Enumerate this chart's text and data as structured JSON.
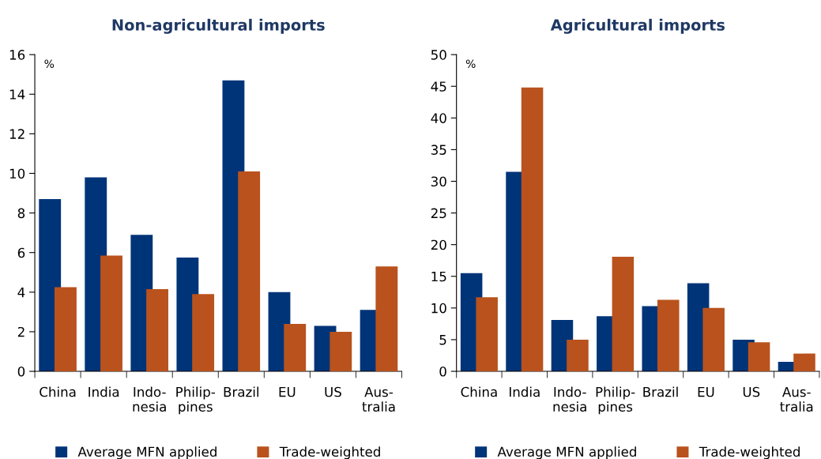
{
  "chart_data": [
    {
      "type": "bar",
      "title": "Non-agricultural imports",
      "ylabel": "%",
      "categories": [
        "China",
        "India",
        "Indo-\nnesia",
        "Philip-\npines",
        "Brazil",
        "EU",
        "US",
        "Aus-\ntralia"
      ],
      "series": [
        {
          "name": "Average MFN applied",
          "color": "#003478",
          "values": [
            8.7,
            9.8,
            6.9,
            5.75,
            14.7,
            4.0,
            2.3,
            3.1
          ]
        },
        {
          "name": "Trade-weighted",
          "color": "#b9521d",
          "values": [
            4.25,
            5.85,
            4.15,
            3.9,
            10.1,
            2.4,
            2.0,
            5.3
          ]
        }
      ],
      "ylim": [
        0,
        16
      ],
      "yticks": [
        0,
        2,
        4,
        6,
        8,
        10,
        12,
        14,
        16
      ],
      "legend": "bottom"
    },
    {
      "type": "bar",
      "title": "Agricultural imports",
      "ylabel": "%",
      "categories": [
        "China",
        "India",
        "Indo-\nnesia",
        "Philip-\npines",
        "Brazil",
        "EU",
        "US",
        "Aus-\ntralia"
      ],
      "series": [
        {
          "name": "Average MFN applied",
          "color": "#003478",
          "values": [
            15.5,
            31.5,
            8.1,
            8.7,
            10.3,
            13.9,
            5.0,
            1.5
          ]
        },
        {
          "name": "Trade-weighted",
          "color": "#b9521d",
          "values": [
            11.7,
            44.8,
            5.0,
            18.1,
            11.3,
            10.0,
            4.6,
            2.8
          ]
        }
      ],
      "ylim": [
        0,
        50
      ],
      "yticks": [
        0,
        5,
        10,
        15,
        20,
        25,
        30,
        35,
        40,
        45,
        50
      ],
      "legend": "bottom"
    }
  ]
}
